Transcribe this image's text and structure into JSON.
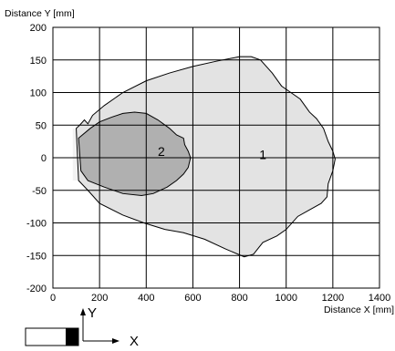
{
  "chart_data": {
    "type": "area",
    "xlabel": "Distance X [mm]",
    "ylabel": "Distance Y [mm]",
    "xlim": [
      0,
      1400
    ],
    "ylim": [
      -200,
      200
    ],
    "x_ticks": [
      0,
      200,
      400,
      600,
      800,
      1000,
      1200,
      1400
    ],
    "y_ticks": [
      200,
      150,
      100,
      50,
      0,
      -50,
      -100,
      -150,
      -200
    ],
    "grid": true,
    "series": [
      {
        "label": "1",
        "color": "#e3e3e3",
        "points": [
          [
            100,
            45
          ],
          [
            115,
            50
          ],
          [
            135,
            58
          ],
          [
            150,
            52
          ],
          [
            170,
            65
          ],
          [
            220,
            80
          ],
          [
            300,
            100
          ],
          [
            400,
            118
          ],
          [
            500,
            130
          ],
          [
            600,
            140
          ],
          [
            700,
            148
          ],
          [
            800,
            155
          ],
          [
            850,
            155
          ],
          [
            890,
            150
          ],
          [
            940,
            130
          ],
          [
            980,
            110
          ],
          [
            1020,
            100
          ],
          [
            1060,
            90
          ],
          [
            1100,
            70
          ],
          [
            1130,
            60
          ],
          [
            1160,
            45
          ],
          [
            1180,
            25
          ],
          [
            1200,
            10
          ],
          [
            1210,
            -2
          ],
          [
            1200,
            -20
          ],
          [
            1180,
            -40
          ],
          [
            1175,
            -60
          ],
          [
            1150,
            -70
          ],
          [
            1100,
            -80
          ],
          [
            1050,
            -90
          ],
          [
            1000,
            -110
          ],
          [
            960,
            -120
          ],
          [
            900,
            -130
          ],
          [
            860,
            -148
          ],
          [
            820,
            -152
          ],
          [
            740,
            -140
          ],
          [
            650,
            -125
          ],
          [
            560,
            -115
          ],
          [
            480,
            -110
          ],
          [
            390,
            -100
          ],
          [
            300,
            -88
          ],
          [
            200,
            -70
          ],
          [
            150,
            -50
          ],
          [
            110,
            -35
          ]
        ]
      },
      {
        "label": "2",
        "color": "#b0b0b0",
        "points": [
          [
            110,
            30
          ],
          [
            160,
            45
          ],
          [
            200,
            55
          ],
          [
            250,
            62
          ],
          [
            300,
            68
          ],
          [
            350,
            70
          ],
          [
            400,
            68
          ],
          [
            450,
            58
          ],
          [
            500,
            45
          ],
          [
            530,
            35
          ],
          [
            560,
            30
          ],
          [
            565,
            20
          ],
          [
            580,
            10
          ],
          [
            590,
            0
          ],
          [
            580,
            -15
          ],
          [
            560,
            -25
          ],
          [
            530,
            -35
          ],
          [
            490,
            -45
          ],
          [
            430,
            -55
          ],
          [
            380,
            -58
          ],
          [
            300,
            -55
          ],
          [
            220,
            -45
          ],
          [
            150,
            -35
          ],
          [
            120,
            -20
          ]
        ]
      }
    ],
    "strip_points": [
      [
        85,
        45
      ],
      [
        100,
        45
      ],
      [
        110,
        -35
      ],
      [
        85,
        -35
      ]
    ],
    "region_labels": [
      {
        "text": "2",
        "x": 465,
        "y": 10
      },
      {
        "text": "1",
        "x": 900,
        "y": 5
      }
    ],
    "legend_axes": {
      "y_label": "Y",
      "x_label": "X"
    }
  }
}
